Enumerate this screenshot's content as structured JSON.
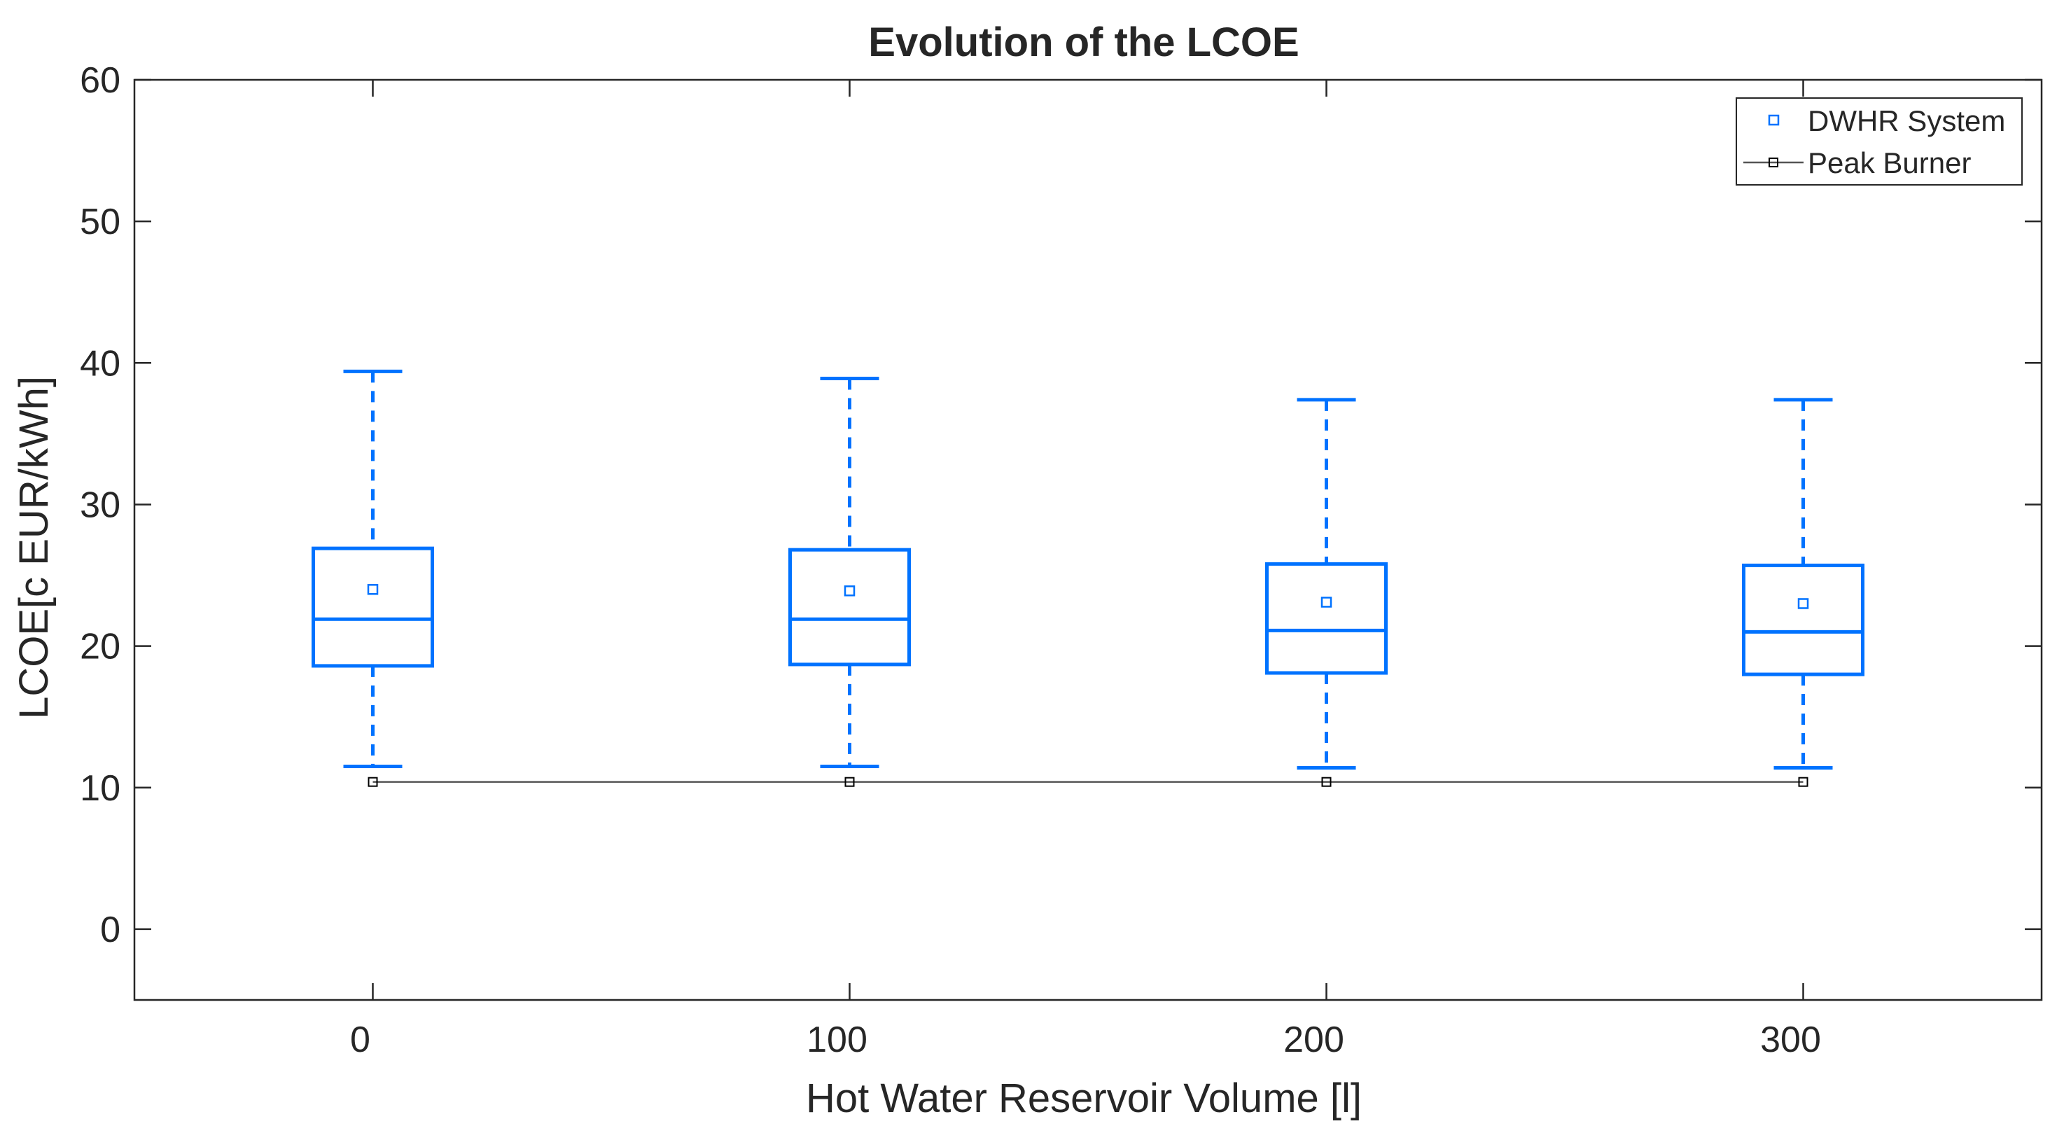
{
  "chart_data": {
    "type": "box",
    "title": "Evolution of the LCOE",
    "xlabel": "Hot Water Reservoir Volume [l]",
    "ylabel": "LCOE[c EUR/kWh]",
    "ylim": [
      -5,
      60
    ],
    "xlim": [
      -50,
      350
    ],
    "yticks": [
      "0",
      "10",
      "20",
      "30",
      "40",
      "50",
      "60"
    ],
    "categories": [
      "0",
      "100",
      "200",
      "300"
    ],
    "boxes": [
      {
        "x": 0,
        "min": 11.5,
        "q1": 18.6,
        "median": 21.9,
        "q3": 26.9,
        "max": 39.4,
        "mean": 24.0
      },
      {
        "x": 100,
        "min": 11.5,
        "q1": 18.7,
        "median": 21.9,
        "q3": 26.8,
        "max": 38.9,
        "mean": 23.9
      },
      {
        "x": 200,
        "min": 11.4,
        "q1": 18.1,
        "median": 21.1,
        "q3": 25.8,
        "max": 37.4,
        "mean": 23.1
      },
      {
        "x": 300,
        "min": 11.4,
        "q1": 18.0,
        "median": 21.0,
        "q3": 25.7,
        "max": 37.4,
        "mean": 23.0
      }
    ],
    "peak_burner": {
      "x": [
        0,
        100,
        200,
        300
      ],
      "y": [
        10.4,
        10.4,
        10.4,
        10.4
      ]
    },
    "legend": [
      "DWHR System",
      "Peak Burner"
    ],
    "legend_position": "top-right",
    "colors": {
      "box": "#0072ff",
      "peak": "#555555",
      "peak_marker": "#000000",
      "axis": "#262626"
    }
  }
}
